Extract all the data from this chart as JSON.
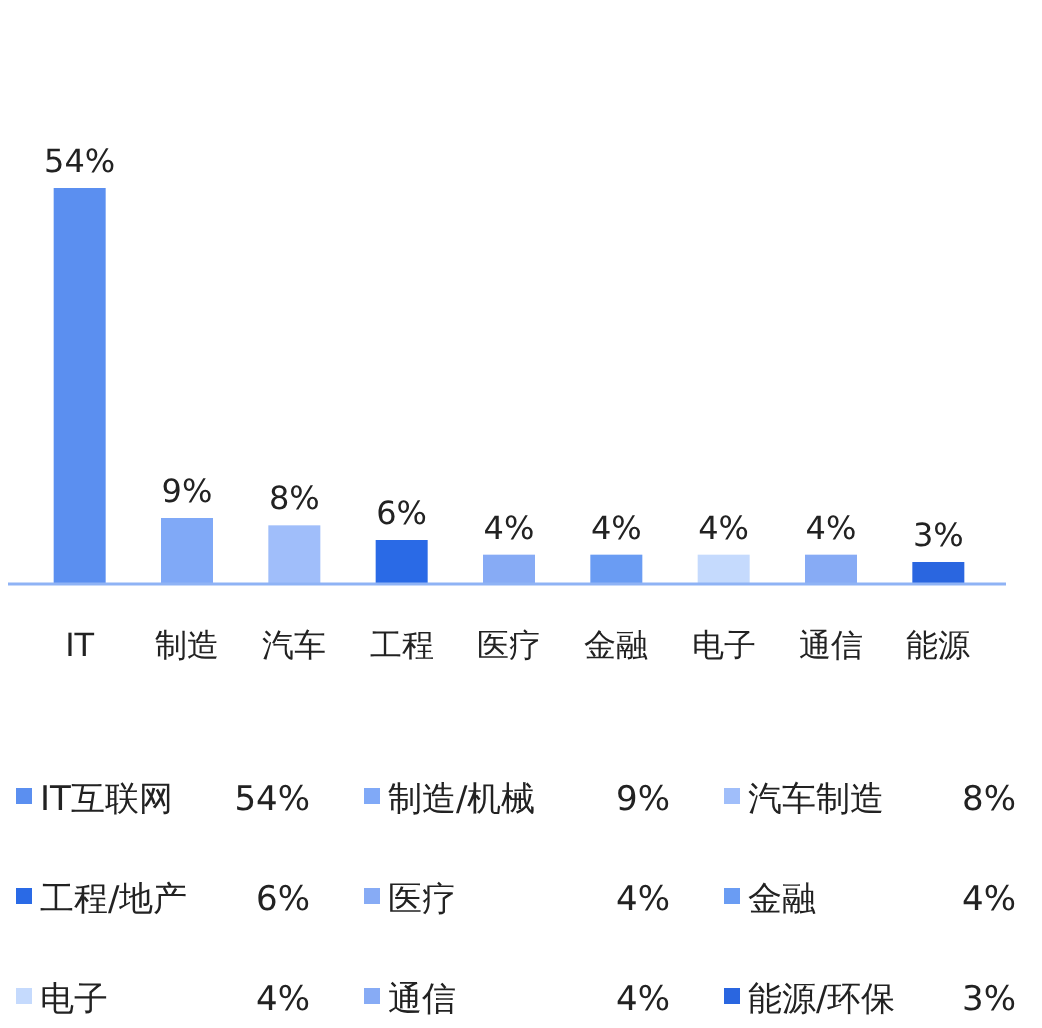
{
  "chart_data": {
    "type": "bar",
    "categories": [
      "IT",
      "制造",
      "汽车",
      "工程",
      "医疗",
      "金融",
      "电子",
      "通信",
      "能源"
    ],
    "ylim": [
      0,
      54
    ],
    "tick_labels": "x",
    "grid": false,
    "legend": "bottom",
    "series": [
      {
        "name": "IT互联网",
        "color": "#5b8ff0",
        "values": [
          54,
          null,
          null,
          null,
          null,
          null,
          null,
          null,
          null
        ],
        "value_labels": [
          "54%",
          null,
          null,
          null,
          null,
          null,
          null,
          null,
          null
        ]
      },
      {
        "name": "制造/机械",
        "color": "#80a9f7",
        "values": [
          null,
          9,
          null,
          null,
          null,
          null,
          null,
          null,
          null
        ],
        "value_labels": [
          null,
          "9%",
          null,
          null,
          null,
          null,
          null,
          null,
          null
        ]
      },
      {
        "name": "汽车制造",
        "color": "#a0befa",
        "values": [
          null,
          null,
          8,
          null,
          null,
          null,
          null,
          null,
          null
        ],
        "value_labels": [
          null,
          null,
          "8%",
          null,
          null,
          null,
          null,
          null,
          null
        ]
      },
      {
        "name": "工程/地产",
        "color": "#2a6ae6",
        "values": [
          null,
          null,
          null,
          6,
          null,
          null,
          null,
          null,
          null
        ],
        "value_labels": [
          null,
          null,
          null,
          "6%",
          null,
          null,
          null,
          null,
          null
        ]
      },
      {
        "name": "医疗",
        "color": "#87abf5",
        "values": [
          null,
          null,
          null,
          null,
          4,
          null,
          null,
          null,
          null
        ],
        "value_labels": [
          null,
          null,
          null,
          null,
          "4%",
          null,
          null,
          null,
          null
        ]
      },
      {
        "name": "金融",
        "color": "#6a9cf3",
        "values": [
          null,
          null,
          null,
          null,
          null,
          4,
          null,
          null,
          null
        ],
        "value_labels": [
          null,
          null,
          null,
          null,
          null,
          "4%",
          null,
          null,
          null
        ]
      },
      {
        "name": "电子",
        "color": "#c5dafd",
        "values": [
          null,
          null,
          null,
          null,
          null,
          null,
          4,
          null,
          null
        ],
        "value_labels": [
          null,
          null,
          null,
          null,
          null,
          null,
          "4%",
          null,
          null
        ]
      },
      {
        "name": "通信",
        "color": "#87abf5",
        "values": [
          null,
          null,
          null,
          null,
          null,
          null,
          null,
          4,
          null
        ],
        "value_labels": [
          null,
          null,
          null,
          null,
          null,
          null,
          null,
          "4%",
          null
        ]
      },
      {
        "name": "能源/环保",
        "color": "#2a66e0",
        "values": [
          null,
          null,
          null,
          null,
          null,
          null,
          null,
          null,
          3
        ],
        "value_labels": [
          null,
          null,
          null,
          null,
          null,
          null,
          null,
          null,
          "3%"
        ]
      }
    ]
  }
}
